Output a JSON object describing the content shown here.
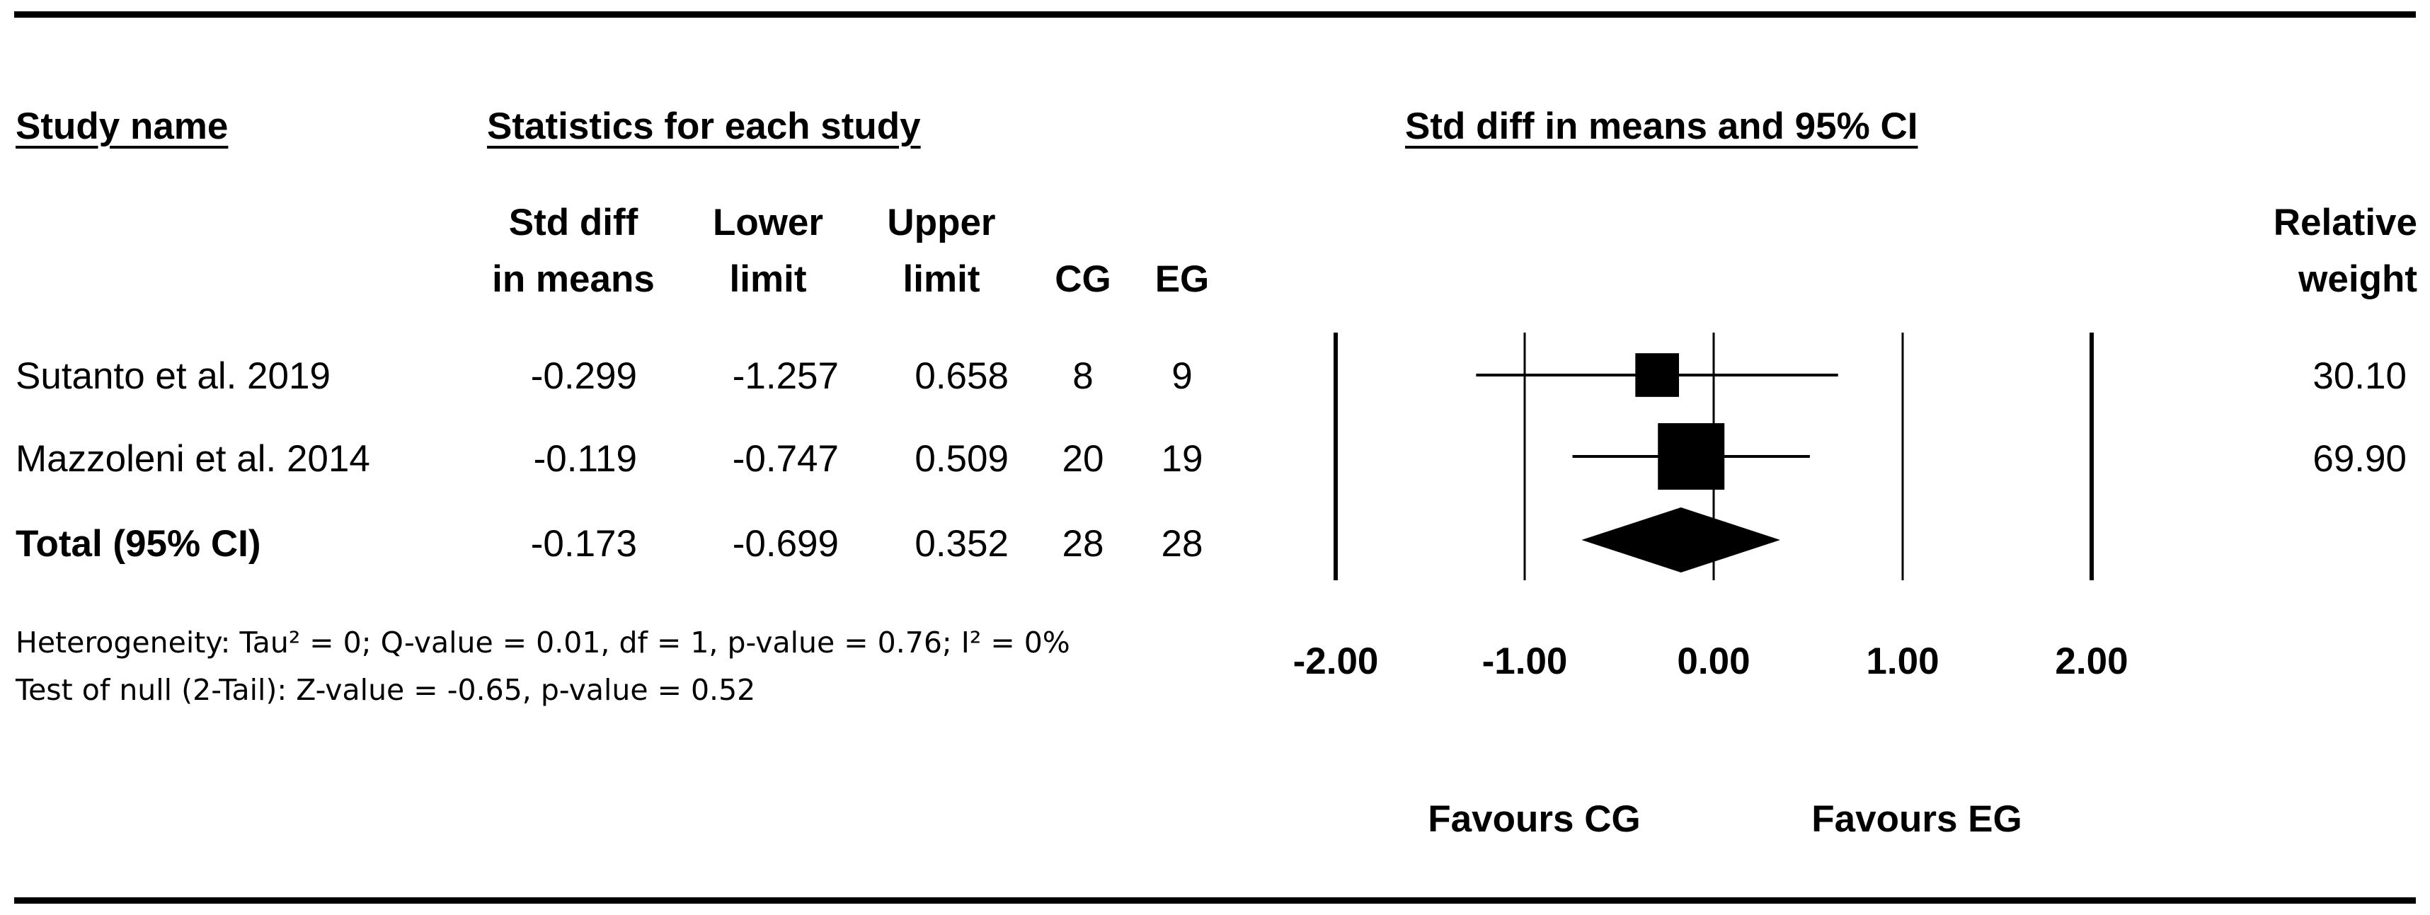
{
  "headers": {
    "study_name": "Study name",
    "statistics": "Statistics for each study",
    "plot_title": "Std diff in means and 95% CI",
    "col_std_diff": [
      "Std diff",
      "in means"
    ],
    "col_lower": [
      "Lower",
      "limit"
    ],
    "col_upper": [
      "Upper",
      "limit"
    ],
    "col_cg": "CG",
    "col_eg": "EG",
    "col_weight": [
      "Relative",
      "weight"
    ]
  },
  "footnotes": {
    "heterogeneity": "Heterogeneity: Tau² = 0; Q-value = 0.01, df = 1, p-value = 0.76; I² = 0%",
    "test_of_null": "Test of null (2-Tail): Z-value = -0.65, p-value = 0.52"
  },
  "chart_data": {
    "type": "forest",
    "x_axis": {
      "range": [
        -2,
        2
      ],
      "tick_values": [
        -2,
        -1,
        0,
        1,
        2
      ],
      "tick_labels": [
        "-2.00",
        "-1.00",
        "0.00",
        "1.00",
        "2.00"
      ]
    },
    "favours_left": "Favours CG",
    "favours_right": "Favours EG",
    "studies": [
      {
        "name": "Sutanto et al. 2019",
        "smd": -0.299,
        "lower": -1.257,
        "upper": 0.658,
        "cg": 8,
        "eg": 9,
        "weight": 30.1,
        "display": {
          "smd": "-0.299",
          "lower": "-1.257",
          "upper": "0.658",
          "cg": "8",
          "eg": "9",
          "weight": "30.10"
        }
      },
      {
        "name": "Mazzoleni et al. 2014",
        "smd": -0.119,
        "lower": -0.747,
        "upper": 0.509,
        "cg": 20,
        "eg": 19,
        "weight": 69.9,
        "display": {
          "smd": "-0.119",
          "lower": "-0.747",
          "upper": "0.509",
          "cg": "20",
          "eg": "19",
          "weight": "69.90"
        }
      }
    ],
    "total": {
      "name": "Total (95% CI)",
      "smd": -0.173,
      "lower": -0.699,
      "upper": 0.352,
      "cg": 28,
      "eg": 28,
      "display": {
        "smd": "-0.173",
        "lower": "-0.699",
        "upper": "0.352",
        "cg": "28",
        "eg": "28"
      }
    }
  }
}
